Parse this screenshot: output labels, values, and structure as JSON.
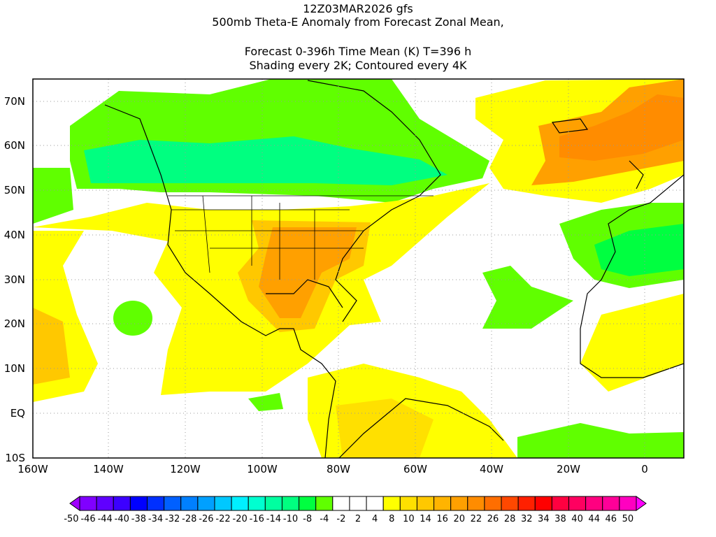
{
  "title": {
    "line1": "12Z03MAR2026 gfs",
    "line2": "500mb Theta-E Anomaly from Forecast Zonal Mean,",
    "line3": "Forecast 0-396h Time Mean (K) T=396 h",
    "line4": "Shading every 2K; Contoured every 4K"
  },
  "axes": {
    "lat_labels": [
      "70N",
      "60N",
      "50N",
      "40N",
      "30N",
      "20N",
      "10N",
      "EQ",
      "10S"
    ],
    "lon_labels": [
      "160W",
      "140W",
      "120W",
      "100W",
      "80W",
      "60W",
      "40W",
      "20W",
      "0"
    ]
  },
  "colorbar": {
    "labels": [
      "-50",
      "-46",
      "-44",
      "-40",
      "-38",
      "-34",
      "-32",
      "-28",
      "-26",
      "-22",
      "-20",
      "-16",
      "-14",
      "-10",
      "-8",
      "-4",
      "-2",
      "2",
      "4",
      "8",
      "10",
      "14",
      "16",
      "20",
      "22",
      "26",
      "28",
      "32",
      "34",
      "38",
      "40",
      "44",
      "46",
      "50"
    ],
    "low_color": "#a000ff",
    "high_color": "#ff00ff",
    "colors": [
      "#8000ff",
      "#6000ff",
      "#3c00ff",
      "#0000ff",
      "#0030ff",
      "#0060ff",
      "#0080ff",
      "#00a0ff",
      "#00c8ff",
      "#00f0ff",
      "#00ffd0",
      "#00ffa0",
      "#00ff80",
      "#00ff40",
      "#60ff00",
      "#ffffff",
      "#ffffff",
      "#ffffff",
      "#ffff00",
      "#ffe000",
      "#ffc800",
      "#ffb400",
      "#ffa000",
      "#ff8c00",
      "#ff6e00",
      "#ff4800",
      "#ff2000",
      "#ff0000",
      "#ff0040",
      "#ff0060",
      "#ff0080",
      "#ff0098",
      "#ff00c0"
    ]
  }
}
